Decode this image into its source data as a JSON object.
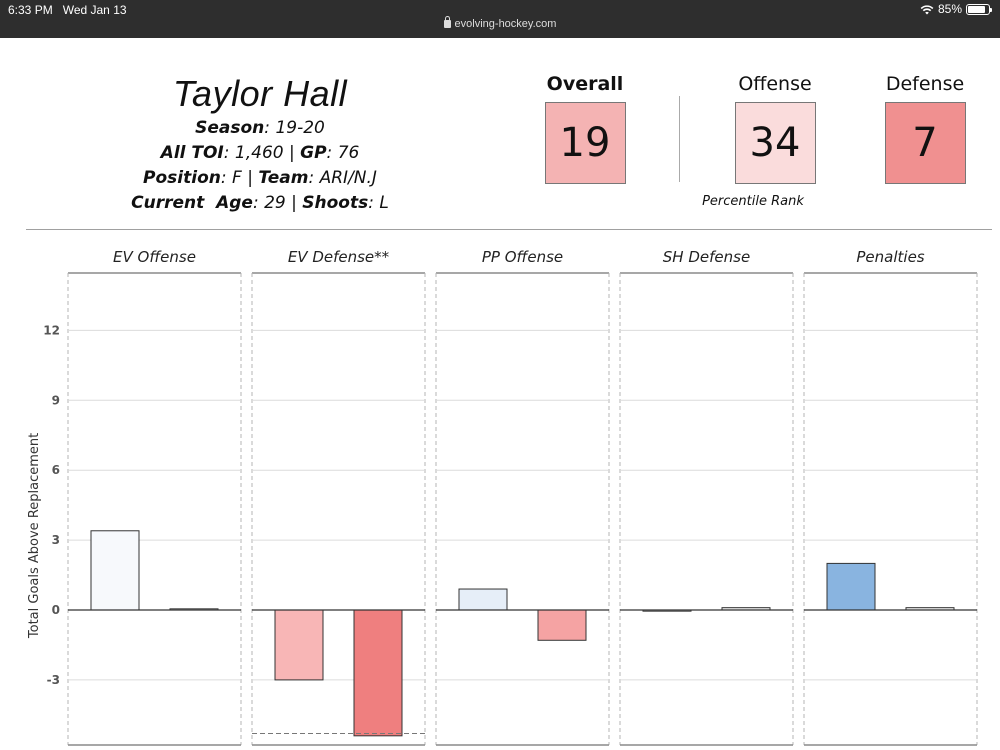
{
  "status_bar": {
    "time": "6:33 PM",
    "date": "Wed Jan 13",
    "url": "evolving-hockey.com",
    "battery": "85%",
    "battery_level": 0.85
  },
  "player": {
    "name": "Taylor Hall",
    "season_label": "Season",
    "season": "19-20",
    "toi_label": "All TOI",
    "toi": "1,460",
    "gp_label": "GP",
    "gp": "76",
    "position_label": "Position",
    "position": "F",
    "team_label": "Team",
    "team": "ARI/N.J",
    "age_label": "Current  Age",
    "age": "29",
    "shoots_label": "Shoots",
    "shoots": "L"
  },
  "ranks": {
    "overall_label": "Overall",
    "overall_value": "19",
    "offense_label": "Offense",
    "offense_value": "34",
    "defense_label": "Defense",
    "defense_value": "7",
    "percentile_label": "Percentile Rank",
    "colors": {
      "overall": "#f4b3b3",
      "offense": "#fadcdc",
      "defense": "#f09090"
    }
  },
  "chart_data": {
    "type": "bar",
    "ylabel": "Total Goals Above Replacement",
    "yticks": [
      12,
      9,
      6,
      3,
      0,
      -3
    ],
    "ylim": [
      -5.5,
      14
    ],
    "grid": true,
    "panels": [
      {
        "title": "EV Offense",
        "bars": [
          {
            "value": 3.4,
            "color": "#f7f9fc"
          },
          {
            "value": 0.05,
            "color": "#f0f0f0"
          }
        ]
      },
      {
        "title": "EV Defense**",
        "bars": [
          {
            "value": -3.0,
            "color": "#f8b6b6"
          },
          {
            "value": -5.4,
            "color": "#ef7f7f"
          }
        ],
        "reference_line": -5.3
      },
      {
        "title": "PP Offense",
        "bars": [
          {
            "value": 0.9,
            "color": "#e6eef8"
          },
          {
            "value": -1.3,
            "color": "#f5a3a3"
          }
        ]
      },
      {
        "title": "SH Defense",
        "bars": [
          {
            "value": -0.05,
            "color": "#eeeeee"
          },
          {
            "value": 0.1,
            "color": "#eeeeee"
          }
        ]
      },
      {
        "title": "Penalties",
        "bars": [
          {
            "value": 2.0,
            "color": "#89b4e0"
          },
          {
            "value": 0.1,
            "color": "#eeeeee"
          }
        ]
      }
    ]
  }
}
